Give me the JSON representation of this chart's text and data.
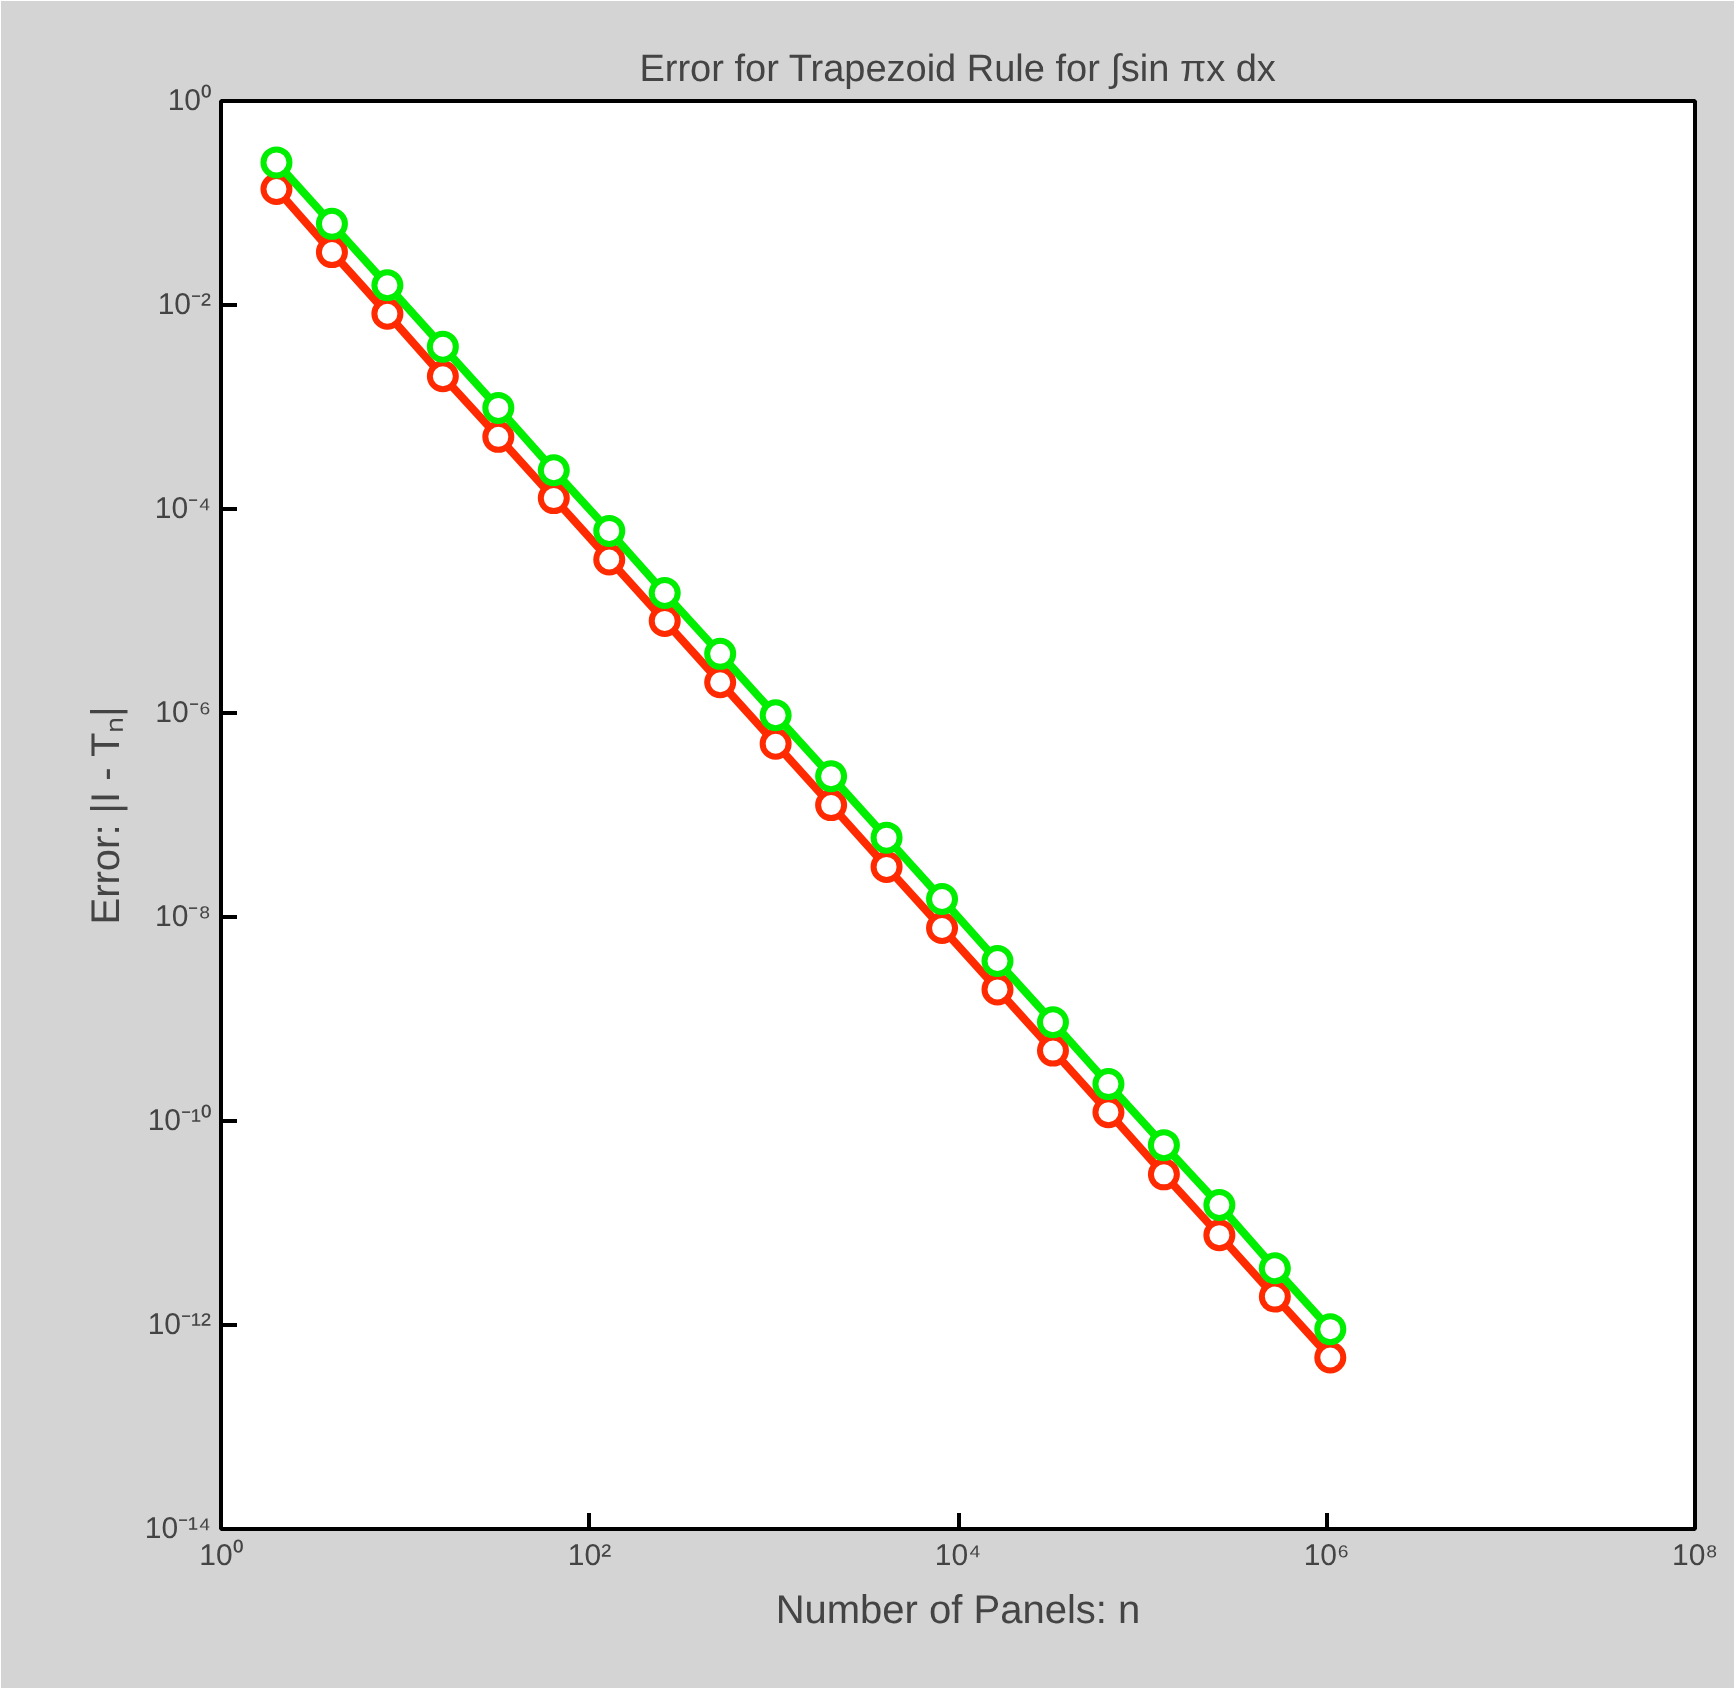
{
  "chart_data": {
    "type": "line",
    "title": "Error for Trapezoid Rule for ∫sin πx dx",
    "xlabel": "Number of Panels: n",
    "ylabel": "Error: |I - Tₙ|",
    "x": [
      2,
      4,
      8,
      16,
      32,
      64,
      128,
      256,
      512,
      1024,
      2048,
      4096,
      8192,
      16384,
      32768,
      65536,
      131072,
      262144,
      524288,
      1048576
    ],
    "series": [
      {
        "color": "#ff2a00",
        "values": [
          0.137,
          0.033,
          0.0082,
          0.002,
          0.00051,
          0.000128,
          3.2e-05,
          8e-06,
          2e-06,
          5e-07,
          1.25e-07,
          3.1e-08,
          7.8e-09,
          1.95e-09,
          4.9e-10,
          1.22e-10,
          3e-11,
          7.6e-12,
          1.9e-12,
          4.8e-13
        ]
      },
      {
        "color": "#00ee00",
        "values": [
          0.25,
          0.0625,
          0.0156,
          0.0039,
          0.00098,
          0.00024,
          6.1e-05,
          1.5e-05,
          3.8e-06,
          9.5e-07,
          2.4e-07,
          6e-08,
          1.5e-08,
          3.7e-09,
          9.3e-10,
          2.3e-10,
          5.8e-11,
          1.5e-11,
          3.6e-12,
          9.1e-13
        ]
      }
    ],
    "log": "xy",
    "xlim": [
      1,
      100000000
    ],
    "ylim": [
      1e-14,
      1
    ],
    "xticks": [
      {
        "value": 1,
        "label": "10⁰"
      },
      {
        "value": 100,
        "label": "10²"
      },
      {
        "value": 10000,
        "label": "10⁴"
      },
      {
        "value": 1000000,
        "label": "10⁶"
      },
      {
        "value": 100000000,
        "label": "10⁸"
      }
    ],
    "yticks": [
      {
        "value": 1e-14,
        "label": "10⁻¹⁴"
      },
      {
        "value": 1e-12,
        "label": "10⁻¹²"
      },
      {
        "value": 1e-10,
        "label": "10⁻¹⁰"
      },
      {
        "value": 1e-08,
        "label": "10⁻⁸"
      },
      {
        "value": 1e-06,
        "label": "10⁻⁶"
      },
      {
        "value": 0.0001,
        "label": "10⁻⁴"
      },
      {
        "value": 0.01,
        "label": "10⁻²"
      },
      {
        "value": 1,
        "label": "10⁰"
      }
    ],
    "grid": false,
    "marker": "circle",
    "line_style": "solid"
  }
}
